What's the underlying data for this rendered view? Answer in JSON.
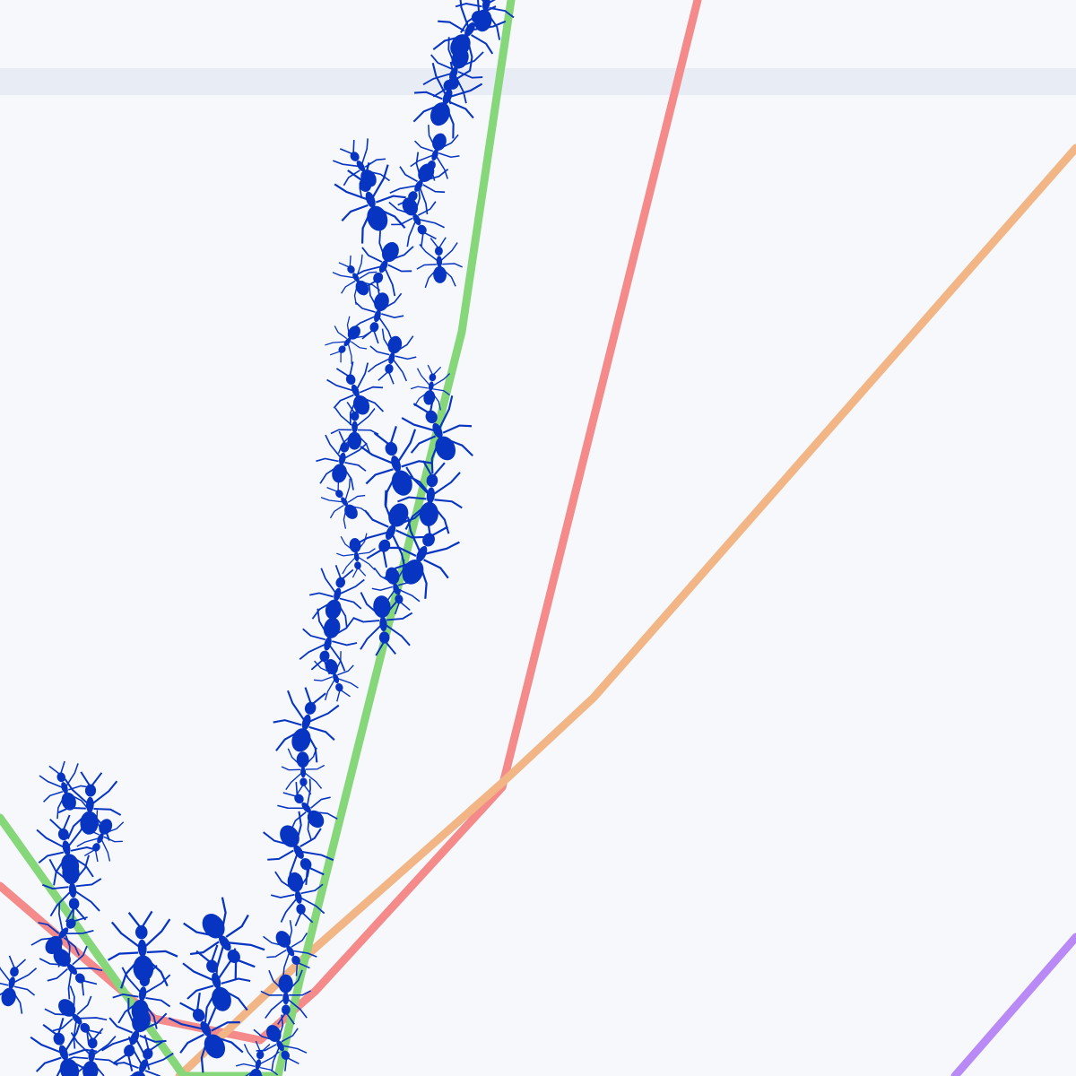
{
  "scene": {
    "description_visible_text": [],
    "colors": {
      "background": "#f6f8fb",
      "band": "#e8edf5",
      "line_green": "#86d67a",
      "line_red": "#f48a8a",
      "line_orange": "#f2b585",
      "line_purple": "#b98af5",
      "ant": "#0735c2"
    },
    "elements": {
      "band": "horizontal-band",
      "lines": [
        "line-green",
        "line-red",
        "line-orange",
        "line-purple"
      ],
      "ants": "ant-swarm"
    }
  }
}
